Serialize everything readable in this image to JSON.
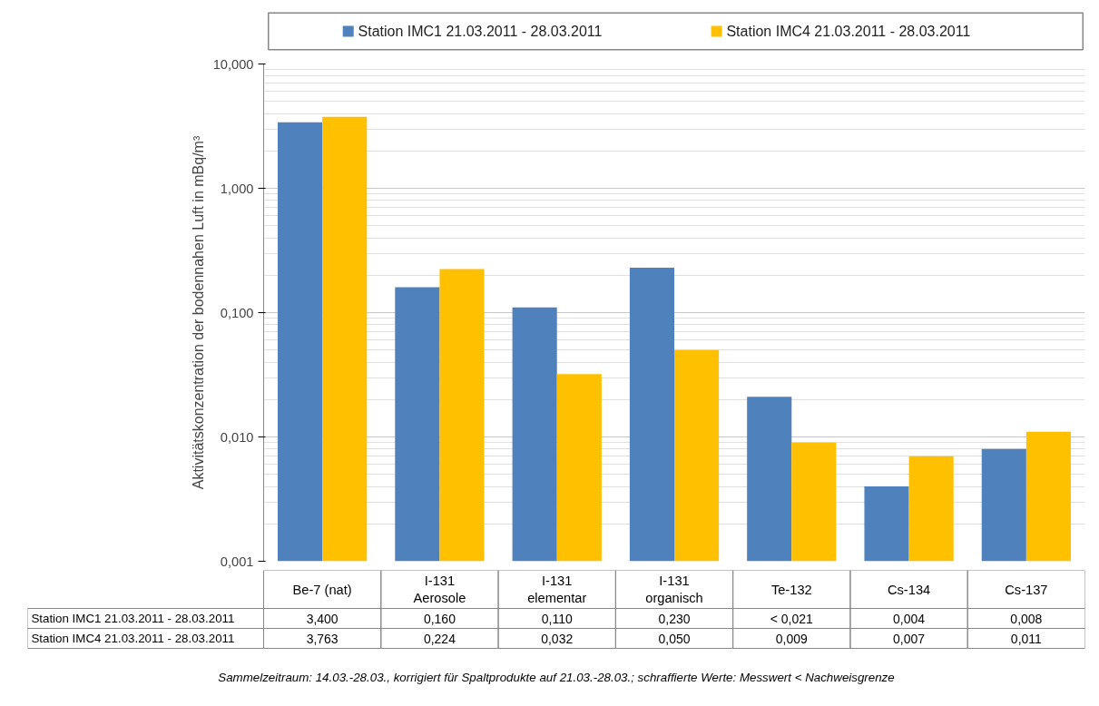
{
  "chart_data": {
    "type": "bar",
    "ylabel": "Aktivitätskonzentration der bodennahen Luft in mBq/m³",
    "categories": [
      "Be-7 (nat)",
      "I-131\nAerosole",
      "I-131\nelementar",
      "I-131\norganisch",
      "Te-132",
      "Cs-134",
      "Cs-137"
    ],
    "series": [
      {
        "name": "Station IMC1 21.03.2011 - 28.03.2011",
        "color": "#4f81bd",
        "values": [
          3.4,
          0.16,
          0.11,
          0.23,
          0.021,
          0.004,
          0.008
        ],
        "value_labels": [
          "3,400",
          "0,160",
          "0,110",
          "0,230",
          "< 0,021",
          "0,004",
          "0,008"
        ]
      },
      {
        "name": "Station IMC4 21.03.2011 - 28.03.2011",
        "color": "#ffc000",
        "values": [
          3.763,
          0.224,
          0.032,
          0.05,
          0.009,
          0.007,
          0.011
        ],
        "value_labels": [
          "3,763",
          "0,224",
          "0,032",
          "0,050",
          "0,009",
          "0,007",
          "0,011"
        ]
      }
    ],
    "log": true,
    "ylim": [
      0.001,
      10
    ],
    "yticks": [
      {
        "value": 0.001,
        "label": "0,001"
      },
      {
        "value": 0.01,
        "label": "0,010"
      },
      {
        "value": 0.1,
        "label": "0,100"
      },
      {
        "value": 1,
        "label": "1,000"
      },
      {
        "value": 10,
        "label": "10,000"
      }
    ],
    "grid": "y",
    "legend": "top",
    "annotations": [
      "Sammelzeitraum: 14.03.-28.03., korrigiert für Spaltprodukte auf 21.03.-28.03.; schraffierte Werte: Messwert < Nachweisgrenze"
    ]
  }
}
